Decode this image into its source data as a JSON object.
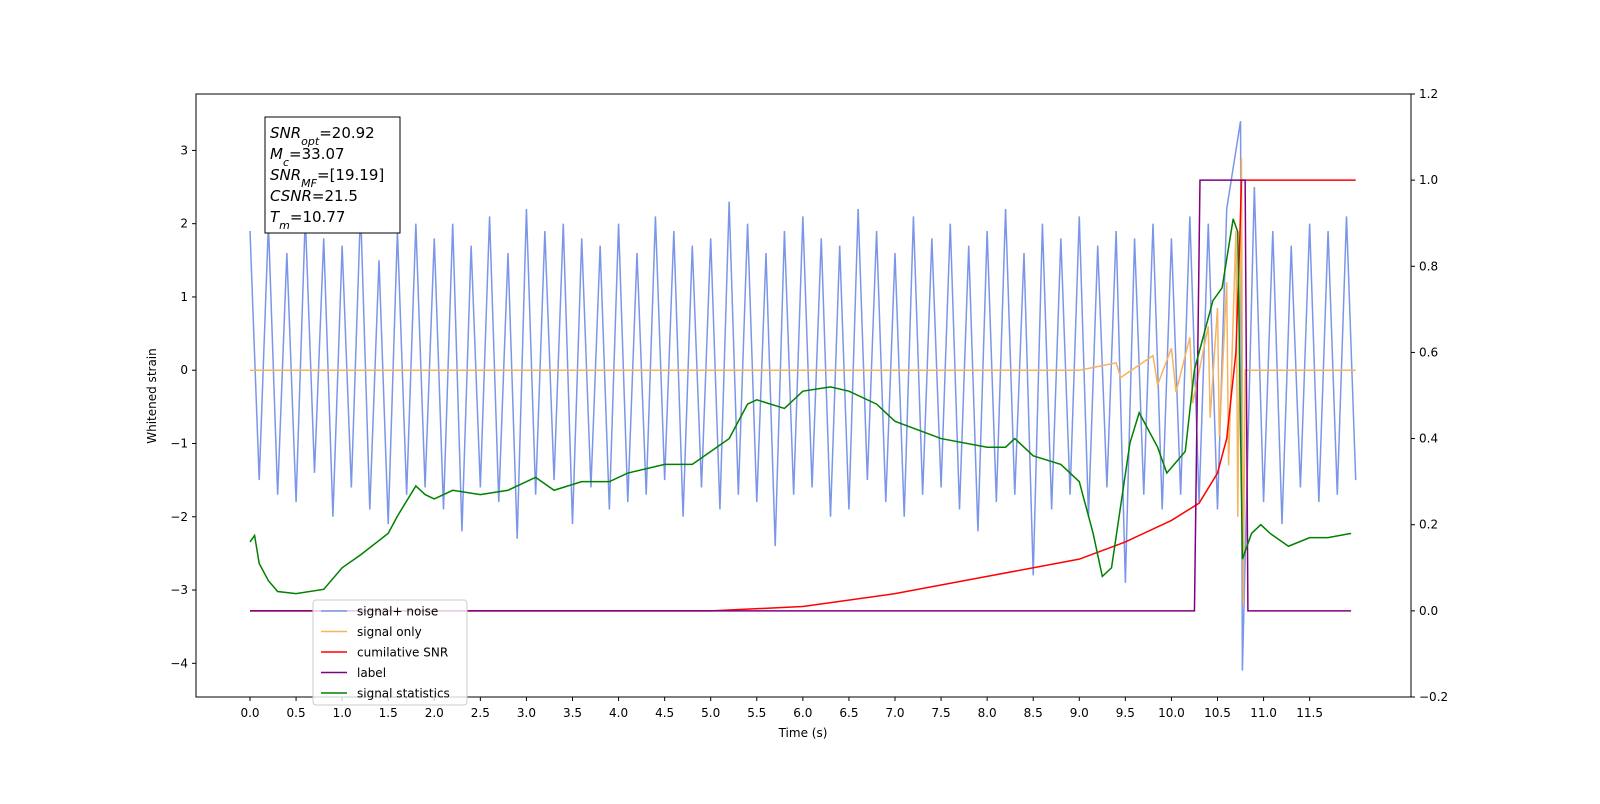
{
  "chart_data": {
    "type": "line",
    "xlabel": "Time (s)",
    "ylabel": "Whitened strain",
    "xlim": [
      -0.586,
      12.6
    ],
    "ylim": [
      -4.46,
      3.77
    ],
    "y2lim": [
      -0.2,
      1.2
    ],
    "xticks": [
      {
        "value": 0,
        "label": "0.0"
      },
      {
        "value": 0.5,
        "label": "0.5"
      },
      {
        "value": 1,
        "label": "1.0"
      },
      {
        "value": 1.5,
        "label": "1.5"
      },
      {
        "value": 2,
        "label": "2.0"
      },
      {
        "value": 2.5,
        "label": "2.5"
      },
      {
        "value": 3,
        "label": "3.0"
      },
      {
        "value": 3.5,
        "label": "3.5"
      },
      {
        "value": 4,
        "label": "4.0"
      },
      {
        "value": 4.5,
        "label": "4.5"
      },
      {
        "value": 5,
        "label": "5.0"
      },
      {
        "value": 5.5,
        "label": "5.5"
      },
      {
        "value": 6,
        "label": "6.0"
      },
      {
        "value": 6.5,
        "label": "6.5"
      },
      {
        "value": 7,
        "label": "7.0"
      },
      {
        "value": 7.5,
        "label": "7.5"
      },
      {
        "value": 8,
        "label": "8.0"
      },
      {
        "value": 8.5,
        "label": "8.5"
      },
      {
        "value": 9,
        "label": "9.0"
      },
      {
        "value": 9.5,
        "label": "9.5"
      },
      {
        "value": 10,
        "label": "10.0"
      },
      {
        "value": 10.5,
        "label": "10.5"
      },
      {
        "value": 11,
        "label": "11.0"
      },
      {
        "value": 11.5,
        "label": "11.5"
      }
    ],
    "yticks": [
      {
        "value": -4,
        "label": "−4"
      },
      {
        "value": -3,
        "label": "−3"
      },
      {
        "value": -2,
        "label": "−2"
      },
      {
        "value": -1,
        "label": "−1"
      },
      0,
      1,
      2,
      3
    ],
    "y2ticks": [
      {
        "value": -0.2,
        "label": "−0.2"
      },
      {
        "value": 0,
        "label": "0.0"
      },
      {
        "value": 0.2,
        "label": "0.2"
      },
      {
        "value": 0.4,
        "label": "0.4"
      },
      {
        "value": 0.6,
        "label": "0.6"
      },
      {
        "value": 0.8,
        "label": "0.8"
      },
      {
        "value": 1,
        "label": "1.0"
      },
      {
        "value": 1.2,
        "label": "1.2"
      }
    ],
    "annotation": [
      {
        "main": "SNR",
        "sub": "opt",
        "rest": "=20.92"
      },
      {
        "main": "M",
        "sub": "c",
        "rest": "=33.07"
      },
      {
        "main": "SNR",
        "sub": "MF",
        "rest": "=[19.19]"
      },
      {
        "main": "CSNR",
        "sub": "",
        "rest": "=21.5"
      },
      {
        "main": "T",
        "sub": "m",
        "rest": "=10.77"
      }
    ],
    "legend": "lower left",
    "series": [
      {
        "name": "signal+ noise",
        "color": "#7b96e8",
        "x": [
          0,
          0.1,
          0.2,
          0.3,
          0.4,
          0.5,
          0.6,
          0.7,
          0.8,
          0.9,
          1,
          1.1,
          1.2,
          1.3,
          1.4,
          1.5,
          1.6,
          1.7,
          1.8,
          1.9,
          2,
          2.1,
          2.2,
          2.3,
          2.4,
          2.5,
          2.6,
          2.7,
          2.8,
          2.9,
          3,
          3.1,
          3.2,
          3.3,
          3.4,
          3.5,
          3.6,
          3.7,
          3.8,
          3.9,
          4,
          4.1,
          4.2,
          4.3,
          4.4,
          4.5,
          4.6,
          4.7,
          4.8,
          4.9,
          5,
          5.1,
          5.2,
          5.3,
          5.4,
          5.5,
          5.6,
          5.7,
          5.8,
          5.9,
          6,
          6.1,
          6.2,
          6.3,
          6.4,
          6.5,
          6.6,
          6.7,
          6.8,
          6.9,
          7,
          7.1,
          7.2,
          7.3,
          7.4,
          7.5,
          7.6,
          7.7,
          7.8,
          7.9,
          8,
          8.1,
          8.2,
          8.3,
          8.4,
          8.5,
          8.6,
          8.7,
          8.8,
          8.9,
          9,
          9.1,
          9.2,
          9.3,
          9.4,
          9.5,
          9.6,
          9.7,
          9.8,
          9.9,
          10,
          10.1,
          10.2,
          10.3,
          10.4,
          10.5,
          10.6,
          10.75,
          10.77,
          10.9,
          11,
          11.1,
          11.2,
          11.3,
          11.4,
          11.5,
          11.6,
          11.7,
          11.8,
          11.9,
          12
        ],
        "values": [
          1.9,
          -1.5,
          2.0,
          -1.7,
          1.6,
          -1.8,
          2.1,
          -1.4,
          1.8,
          -2.0,
          1.7,
          -1.6,
          2.2,
          -1.9,
          1.5,
          -2.1,
          1.9,
          -1.7,
          2.0,
          -1.6,
          1.8,
          -1.9,
          2.0,
          -2.2,
          1.7,
          -1.6,
          2.1,
          -1.8,
          1.6,
          -2.3,
          2.2,
          -1.7,
          1.9,
          -1.5,
          2.0,
          -2.1,
          1.8,
          -1.6,
          1.7,
          -1.9,
          2.0,
          -1.8,
          1.6,
          -1.7,
          2.1,
          -1.5,
          1.9,
          -2.0,
          1.7,
          -1.6,
          1.8,
          -1.9,
          2.3,
          -1.7,
          2.0,
          -1.8,
          1.6,
          -2.4,
          1.9,
          -1.7,
          2.1,
          -1.6,
          1.8,
          -2.0,
          1.7,
          -1.9,
          2.2,
          -1.5,
          1.9,
          -1.8,
          1.6,
          -2.0,
          2.1,
          -1.7,
          1.8,
          -1.6,
          2.0,
          -1.9,
          1.7,
          -2.2,
          1.9,
          -1.8,
          2.2,
          -1.7,
          1.6,
          -2.8,
          2.0,
          -1.9,
          1.8,
          -1.7,
          2.1,
          -2.0,
          1.7,
          -1.6,
          1.9,
          -2.9,
          1.8,
          -1.7,
          2.0,
          -1.9,
          1.8,
          -1.7,
          2.1,
          -1.8,
          2.0,
          -1.9,
          2.2,
          3.4,
          -4.1,
          2.5,
          -1.8,
          1.9,
          -2.1,
          1.7,
          -1.6,
          2.0,
          -1.8,
          1.9,
          -1.7,
          2.1,
          -1.5
        ]
      },
      {
        "name": "signal only",
        "color": "#f5b461",
        "x": [
          0,
          9.0,
          9.4,
          9.45,
          9.8,
          9.85,
          10.0,
          10.05,
          10.2,
          10.23,
          10.4,
          10.42,
          10.5,
          10.52,
          10.6,
          10.62,
          10.7,
          10.72,
          10.76,
          10.78,
          10.8,
          12.0
        ],
        "values": [
          0,
          0,
          0.1,
          -0.1,
          0.2,
          -0.2,
          0.3,
          -0.3,
          0.45,
          -0.45,
          0.6,
          -0.65,
          0.85,
          -0.9,
          1.2,
          -1.3,
          1.9,
          -2.0,
          2.9,
          -3.2,
          0,
          0
        ]
      },
      {
        "name": "cumilative SNR",
        "color": "#ff0000",
        "axis": "y2",
        "x": [
          0,
          5,
          6,
          7,
          8,
          9,
          9.5,
          10,
          10.3,
          10.5,
          10.6,
          10.7,
          10.74,
          10.76,
          12.0
        ],
        "values": [
          0,
          0,
          0.01,
          0.04,
          0.08,
          0.12,
          0.16,
          0.21,
          0.25,
          0.32,
          0.4,
          0.6,
          0.85,
          1.0,
          1.0
        ]
      },
      {
        "name": "label",
        "color": "#800080",
        "axis": "y2",
        "x": [
          0,
          10.25,
          10.31,
          10.8,
          10.83,
          11.95
        ],
        "values": [
          0,
          0,
          1,
          1,
          0,
          0
        ]
      },
      {
        "name": "signal statistics",
        "color": "#008000",
        "axis": "y2",
        "x": [
          0,
          0.05,
          0.1,
          0.2,
          0.3,
          0.5,
          0.8,
          1.0,
          1.2,
          1.5,
          1.6,
          1.8,
          1.9,
          2.0,
          2.2,
          2.5,
          2.8,
          3.1,
          3.3,
          3.6,
          3.9,
          4.1,
          4.5,
          4.8,
          5.0,
          5.2,
          5.4,
          5.5,
          5.8,
          6.0,
          6.3,
          6.5,
          6.8,
          7.0,
          7.5,
          8.0,
          8.2,
          8.3,
          8.5,
          8.8,
          9.0,
          9.15,
          9.25,
          9.35,
          9.55,
          9.65,
          9.85,
          9.95,
          10.15,
          10.25,
          10.45,
          10.55,
          10.67,
          10.72,
          10.77,
          10.87,
          10.97,
          11.07,
          11.27,
          11.5,
          11.7,
          11.95
        ],
        "values": [
          0.16,
          0.175,
          0.11,
          0.07,
          0.045,
          0.04,
          0.05,
          0.1,
          0.13,
          0.18,
          0.22,
          0.29,
          0.27,
          0.26,
          0.28,
          0.27,
          0.28,
          0.31,
          0.28,
          0.3,
          0.3,
          0.32,
          0.34,
          0.34,
          0.37,
          0.4,
          0.48,
          0.49,
          0.47,
          0.51,
          0.52,
          0.51,
          0.48,
          0.44,
          0.4,
          0.38,
          0.38,
          0.4,
          0.36,
          0.34,
          0.3,
          0.18,
          0.08,
          0.1,
          0.39,
          0.46,
          0.38,
          0.32,
          0.37,
          0.56,
          0.72,
          0.75,
          0.91,
          0.88,
          0.12,
          0.18,
          0.2,
          0.18,
          0.15,
          0.17,
          0.17,
          0.18
        ]
      }
    ]
  }
}
